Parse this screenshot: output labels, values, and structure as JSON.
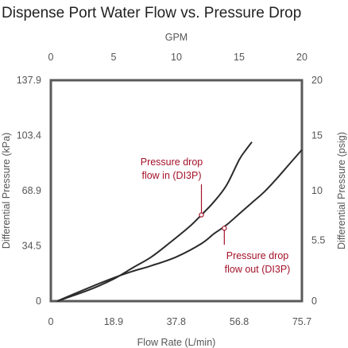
{
  "chart_data": {
    "type": "line",
    "title": "Dispense Port Water Flow vs. Pressure Drop",
    "xlabel": "Flow Rate (L/min)",
    "x2label": "GPM",
    "ylabel": "Differential Pressure (kPa)",
    "y2label": "Differential Pressure (psig)",
    "xlim": [
      0,
      75.7
    ],
    "ylim": [
      0,
      137.9
    ],
    "x2lim": [
      0,
      20
    ],
    "y2lim": [
      0,
      20
    ],
    "x_ticks": [
      "0",
      "18.9",
      "37.8",
      "56.8",
      "75.7"
    ],
    "x_tick_values": [
      0,
      18.9,
      37.8,
      56.8,
      75.7
    ],
    "x2_ticks": [
      "0",
      "5",
      "10",
      "15",
      "20"
    ],
    "x2_tick_values": [
      0,
      5,
      10,
      15,
      20
    ],
    "y_ticks": [
      "0",
      "34.5",
      "68.9",
      "103.4",
      "137.9"
    ],
    "y_tick_values": [
      0,
      34.5,
      68.9,
      103.4,
      137.9
    ],
    "y2_ticks": [
      "0",
      "5.5",
      "10",
      "15",
      "20"
    ],
    "y2_tick_values": [
      0,
      5.5,
      10,
      15,
      20
    ],
    "grid": false,
    "colors": {
      "line": "#2b2b2b",
      "frame": "#5a5a5a",
      "annotation": "#a3122a"
    },
    "series": [
      {
        "x": [
          1.9,
          11.4,
          18.9,
          24.6,
          30.3,
          35.9,
          41.6,
          45.4,
          49.2,
          53.0,
          56.8,
          58.7,
          60.6
        ],
        "y": [
          0,
          6.9,
          13.8,
          20.7,
          27.6,
          36.5,
          46.2,
          53.8,
          62.1,
          72.4,
          88.3,
          94.1,
          99.3
        ]
      },
      {
        "x": [
          1.9,
          11.4,
          18.9,
          24.6,
          30.3,
          37.8,
          45.4,
          49.2,
          53.0,
          56.8,
          60.6,
          64.4,
          68.1,
          71.9,
          75.7
        ],
        "y": [
          0,
          8.3,
          14.5,
          18.6,
          22.1,
          27.6,
          35.9,
          42.1,
          47.6,
          54.5,
          61.4,
          68.3,
          76.5,
          85.5,
          94.5
        ]
      }
    ],
    "annotations": [
      {
        "lines": [
          "Pressure drop",
          "flow in (DI3P)"
        ],
        "x": 45.4,
        "y": 53.8
      },
      {
        "lines": [
          "Pressure drop",
          "flow out (DI3P)"
        ],
        "x": 52.3,
        "y": 45.5
      }
    ]
  }
}
